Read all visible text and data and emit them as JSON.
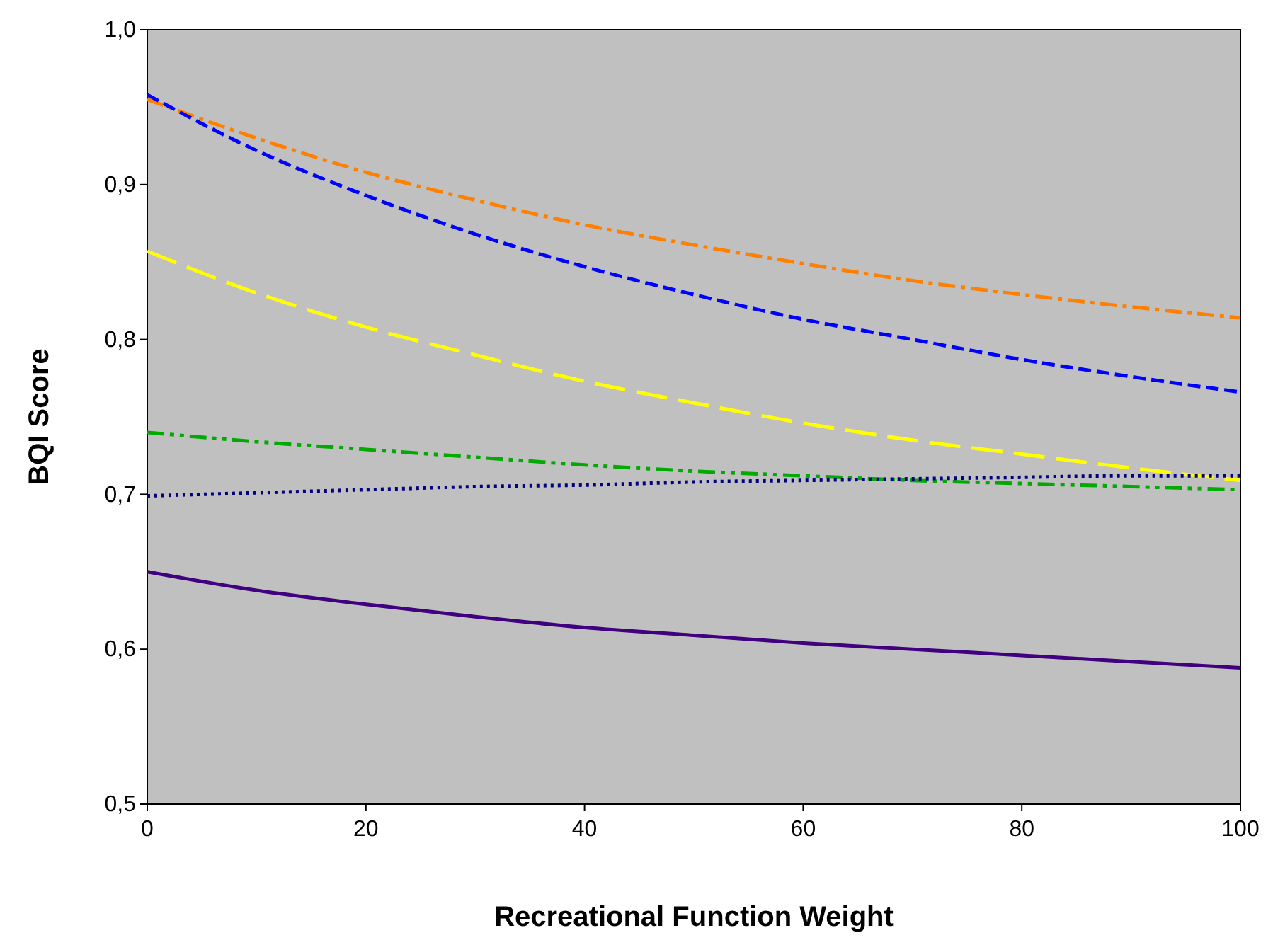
{
  "chart_data": {
    "type": "line",
    "xlabel": "Recreational Function Weight",
    "ylabel": "BQI Score",
    "x": [
      0,
      10,
      20,
      30,
      40,
      50,
      60,
      70,
      80,
      90,
      100
    ],
    "xlim": [
      0,
      100
    ],
    "xticks": [
      0,
      20,
      40,
      60,
      80,
      100
    ],
    "ylim": [
      0.5,
      1.0
    ],
    "yticks": [
      {
        "value": 0.5,
        "label": "0,5"
      },
      {
        "value": 0.6,
        "label": "0,6"
      },
      {
        "value": 0.7,
        "label": "0,7"
      },
      {
        "value": 0.8,
        "label": "0,8"
      },
      {
        "value": 0.9,
        "label": "0,9"
      },
      {
        "value": 1.0,
        "label": "1,0"
      }
    ],
    "grid": false,
    "marker": "none",
    "series": [
      {
        "color": "#ff8000",
        "line_style": "dashdot",
        "values": [
          0.955,
          0.93,
          0.908,
          0.89,
          0.874,
          0.861,
          0.849,
          0.838,
          0.829,
          0.821,
          0.814
        ]
      },
      {
        "color": "#0000ff",
        "line_style": "dashed",
        "values": [
          0.958,
          0.922,
          0.893,
          0.868,
          0.847,
          0.829,
          0.813,
          0.8,
          0.787,
          0.776,
          0.766
        ]
      },
      {
        "color": "#ffff00",
        "line_style": "longdash",
        "values": [
          0.857,
          0.83,
          0.808,
          0.79,
          0.773,
          0.759,
          0.746,
          0.735,
          0.726,
          0.717,
          0.709
        ]
      },
      {
        "color": "#00aa00",
        "line_style": "dashdotdot",
        "values": [
          0.74,
          0.734,
          0.729,
          0.724,
          0.719,
          0.715,
          0.712,
          0.709,
          0.707,
          0.705,
          0.703
        ]
      },
      {
        "color": "#000080",
        "line_style": "dotted",
        "values": [
          0.699,
          0.701,
          0.703,
          0.705,
          0.706,
          0.708,
          0.709,
          0.71,
          0.711,
          0.712,
          0.712
        ]
      },
      {
        "color": "#400080",
        "line_style": "solid",
        "values": [
          0.65,
          0.638,
          0.629,
          0.621,
          0.614,
          0.609,
          0.604,
          0.6,
          0.596,
          0.592,
          0.588
        ]
      }
    ]
  }
}
